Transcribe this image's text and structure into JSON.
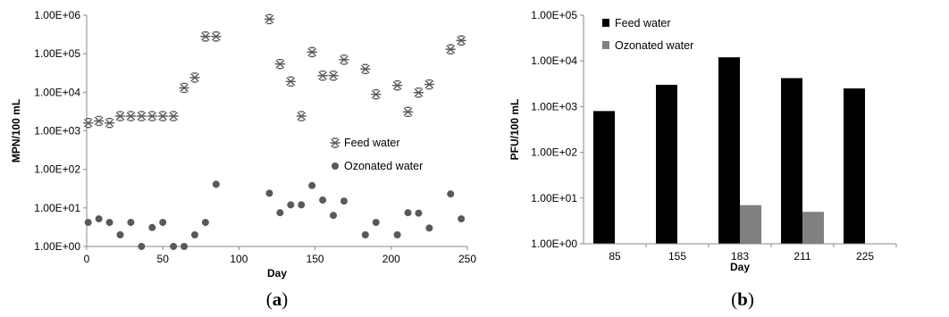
{
  "chart_data": [
    {
      "type": "scatter",
      "panel_label": {
        "open": "(",
        "letter": "a",
        "close": ")"
      },
      "xlabel": "Day",
      "ylabel": "MPN/100 mL",
      "xlim": [
        0,
        250
      ],
      "ylim": [
        1,
        1000000
      ],
      "yscale": "log",
      "x_ticks": [
        "0",
        "50",
        "100",
        "150",
        "200",
        "250"
      ],
      "y_ticks": [
        "1.00E+00",
        "1.00E+01",
        "1.00E+02",
        "1.00E+03",
        "1.00E+04",
        "1.00E+05",
        "1.00E+06"
      ],
      "legend": {
        "placement": "right-middle"
      },
      "series": [
        {
          "name": "Feed water",
          "marker": "asterisk",
          "color": "#595959",
          "points": [
            [
              1,
              1600
            ],
            [
              8,
              1800
            ],
            [
              15,
              1600
            ],
            [
              22,
              2400
            ],
            [
              29,
              2400
            ],
            [
              36,
              2400
            ],
            [
              43,
              2400
            ],
            [
              50,
              2400
            ],
            [
              57,
              2400
            ],
            [
              64,
              13000
            ],
            [
              71,
              24000
            ],
            [
              78,
              280000
            ],
            [
              85,
              280000
            ],
            [
              120,
              790000
            ],
            [
              127,
              54000
            ],
            [
              134,
              19000
            ],
            [
              141,
              2400
            ],
            [
              148,
              110000
            ],
            [
              155,
              27000
            ],
            [
              162,
              27000
            ],
            [
              169,
              70000
            ],
            [
              183,
              40000
            ],
            [
              190,
              8800
            ],
            [
              204,
              15000
            ],
            [
              211,
              3100
            ],
            [
              218,
              9800
            ],
            [
              225,
              16000
            ],
            [
              239,
              130000
            ],
            [
              246,
              220000
            ]
          ]
        },
        {
          "name": "Ozonated water",
          "marker": "circle",
          "color": "#595959",
          "points": [
            [
              1,
              4.2
            ],
            [
              8,
              5.2
            ],
            [
              15,
              4.2
            ],
            [
              22,
              2
            ],
            [
              29,
              4.2
            ],
            [
              36,
              1
            ],
            [
              43,
              3.1
            ],
            [
              50,
              4.2
            ],
            [
              57,
              1
            ],
            [
              64,
              1
            ],
            [
              71,
              2
            ],
            [
              78,
              4.2
            ],
            [
              85,
              41
            ],
            [
              120,
              24
            ],
            [
              127,
              7.5
            ],
            [
              134,
              12
            ],
            [
              141,
              12
            ],
            [
              148,
              38
            ],
            [
              155,
              16
            ],
            [
              162,
              6.4
            ],
            [
              169,
              15
            ],
            [
              183,
              2
            ],
            [
              190,
              4.2
            ],
            [
              204,
              2
            ],
            [
              211,
              7.5
            ],
            [
              218,
              7.3
            ],
            [
              225,
              3
            ],
            [
              239,
              23
            ],
            [
              246,
              5.2
            ]
          ]
        }
      ]
    },
    {
      "type": "bar",
      "panel_label": {
        "open": "(",
        "letter": "b",
        "close": ")"
      },
      "xlabel": "Day",
      "ylabel": "PFU/100 mL",
      "ylim": [
        1,
        100000
      ],
      "yscale": "log",
      "categories": [
        "85",
        "155",
        "183",
        "211",
        "225"
      ],
      "y_ticks": [
        "1.00E+00",
        "1.00E+01",
        "1.00E+02",
        "1.00E+03",
        "1.00E+04",
        "1.00E+05"
      ],
      "legend": {
        "placement": "top-left"
      },
      "series": [
        {
          "name": "Feed water",
          "color": "#000000",
          "values": [
            800,
            3000,
            12000,
            4200,
            2500
          ]
        },
        {
          "name": "Ozonated water",
          "color": "#808080",
          "values": [
            null,
            null,
            7,
            5,
            null
          ]
        }
      ]
    }
  ]
}
